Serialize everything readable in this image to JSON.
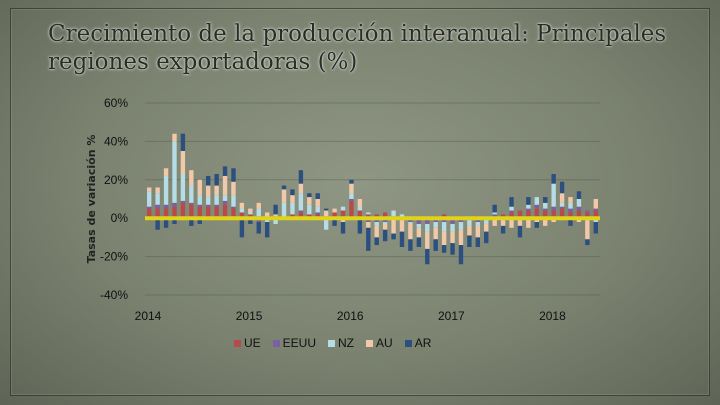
{
  "slide": {
    "title": "Crecimiento de la producción interanual: Principales regiones exportadoras (%)"
  },
  "chart_data": {
    "type": "bar",
    "stacked": true,
    "ylabel": "Tasas de variación %",
    "ylim": [
      -40,
      60
    ],
    "y_ticks": [
      "60%",
      "40%",
      "20%",
      "0%",
      "-20%",
      "-40%"
    ],
    "y_tick_values": [
      60,
      40,
      20,
      0,
      -20,
      -40
    ],
    "x_ticks": [
      "2014",
      "2015",
      "2016",
      "2017",
      "2018"
    ],
    "x_tick_index": [
      0,
      12,
      24,
      36,
      48
    ],
    "legend_placement": "bottom",
    "zero_line_color": "#e0d418",
    "series": [
      {
        "name": "UE",
        "color": "#b84a4a",
        "values": [
          5,
          5,
          5,
          6,
          8,
          7,
          6,
          6,
          6,
          7,
          5,
          3,
          2,
          1,
          0,
          1,
          0,
          2,
          3,
          2,
          2,
          1,
          3,
          4,
          9,
          4,
          2,
          2,
          3,
          1,
          0,
          0,
          0,
          0,
          1,
          2,
          1,
          1,
          0,
          -1,
          -1,
          1,
          2,
          3,
          4,
          4,
          5,
          4,
          4,
          5,
          3,
          4,
          3,
          4
        ]
      },
      {
        "name": "EEUU",
        "color": "#7a5fa3",
        "values": [
          1,
          2,
          2,
          2,
          1,
          1,
          1,
          1,
          1,
          2,
          1,
          -1,
          -1,
          -2,
          -1,
          0,
          -1,
          0,
          1,
          0,
          1,
          0,
          0,
          -1,
          1,
          0,
          -2,
          -2,
          -2,
          0,
          -1,
          -2,
          -3,
          -3,
          -2,
          -2,
          -3,
          -2,
          -1,
          -1,
          0,
          1,
          0,
          1,
          0,
          1,
          2,
          1,
          2,
          1,
          2,
          2,
          1,
          1
        ]
      },
      {
        "name": "NZ",
        "color": "#b6dce6",
        "values": [
          8,
          6,
          15,
          32,
          14,
          9,
          5,
          4,
          5,
          3,
          6,
          2,
          1,
          4,
          -1,
          -3,
          8,
          6,
          9,
          5,
          3,
          -6,
          0,
          2,
          3,
          2,
          1,
          -2,
          -1,
          3,
          2,
          -1,
          -2,
          -4,
          -3,
          -5,
          -4,
          -4,
          -3,
          -2,
          -2,
          1,
          -1,
          2,
          -1,
          2,
          4,
          3,
          12,
          2,
          3,
          4,
          -1,
          -2
        ]
      },
      {
        "name": "AU",
        "color": "#f2c9a8",
        "values": [
          2,
          3,
          4,
          4,
          12,
          8,
          8,
          6,
          5,
          10,
          7,
          3,
          2,
          3,
          3,
          1,
          7,
          4,
          5,
          4,
          4,
          3,
          2,
          -1,
          5,
          4,
          -3,
          -6,
          -3,
          -8,
          -6,
          -8,
          -5,
          -9,
          -6,
          -7,
          -6,
          -8,
          -5,
          -6,
          -4,
          -4,
          -3,
          -5,
          -3,
          -5,
          -2,
          -4,
          -2,
          5,
          3,
          -2,
          -10,
          5
        ]
      },
      {
        "name": "AR",
        "color": "#2b4f7e",
        "values": [
          -1,
          -6,
          -5,
          -3,
          9,
          -4,
          -3,
          5,
          6,
          5,
          7,
          -9,
          -2,
          -6,
          -8,
          5,
          2,
          3,
          7,
          2,
          3,
          1,
          -4,
          -6,
          2,
          -8,
          -12,
          -4,
          -6,
          -3,
          -8,
          -6,
          -5,
          -8,
          -6,
          -4,
          -6,
          -10,
          -6,
          -5,
          -6,
          4,
          -4,
          5,
          -6,
          4,
          -3,
          3,
          5,
          6,
          -4,
          4,
          -3,
          -6
        ]
      }
    ]
  }
}
